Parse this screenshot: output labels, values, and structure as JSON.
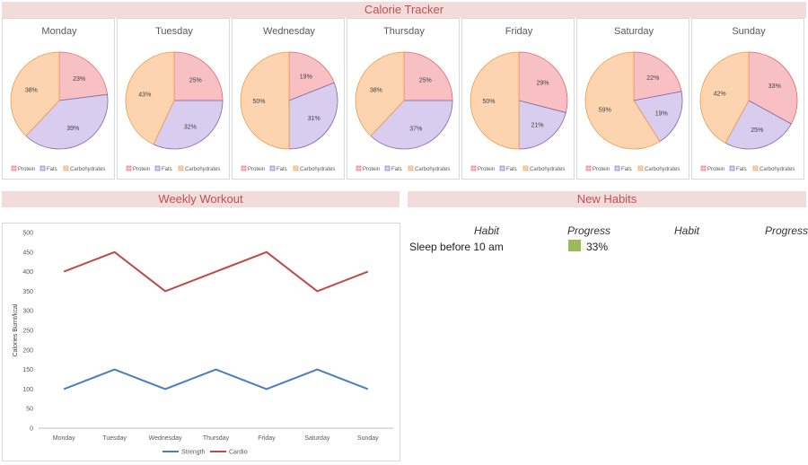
{
  "header": {
    "title": "Calorie Tracker"
  },
  "nutrition_legend": {
    "protein": "Protein",
    "fats": "Fats",
    "carbs": "Carbohydrates"
  },
  "colors": {
    "protein_fill": "#f9c0c3",
    "protein_stroke": "#e06666",
    "fats_fill": "#d9cdef",
    "fats_stroke": "#8064a2",
    "carbs_fill": "#fcd5b0",
    "carbs_stroke": "#f79646",
    "strength": "#4a7ebb",
    "cardio": "#be4b48",
    "habit_progress": "#9bbb59"
  },
  "chart_data": [
    {
      "type": "pie",
      "title": "Monday",
      "labels": [
        "Protein",
        "Fats",
        "Carbohydrates"
      ],
      "values": [
        23,
        39,
        38
      ]
    },
    {
      "type": "pie",
      "title": "Tuesday",
      "labels": [
        "Protein",
        "Fats",
        "Carbohydrates"
      ],
      "values": [
        25,
        32,
        43
      ]
    },
    {
      "type": "pie",
      "title": "Wednesday",
      "labels": [
        "Protein",
        "Fats",
        "Carbohydrates"
      ],
      "values": [
        19,
        31,
        50
      ]
    },
    {
      "type": "pie",
      "title": "Thursday",
      "labels": [
        "Protein",
        "Fats",
        "Carbohydrates"
      ],
      "values": [
        25,
        37,
        38
      ]
    },
    {
      "type": "pie",
      "title": "Friday",
      "labels": [
        "Protein",
        "Fats",
        "Carbohydrates"
      ],
      "values": [
        29,
        21,
        50
      ]
    },
    {
      "type": "pie",
      "title": "Saturday",
      "labels": [
        "Protein",
        "Fats",
        "Carbohydrates"
      ],
      "values": [
        22,
        19,
        59
      ]
    },
    {
      "type": "pie",
      "title": "Sunday",
      "labels": [
        "Protein",
        "Fats",
        "Carbohydrates"
      ],
      "values": [
        33,
        25,
        42
      ]
    },
    {
      "type": "line",
      "title": "Weekly Workout",
      "categories": [
        "Monday",
        "Tuesday",
        "Wednesday",
        "Thursday",
        "Friday",
        "Saturday",
        "Sunday"
      ],
      "series": [
        {
          "name": "Strength",
          "values": [
            100,
            150,
            100,
            150,
            100,
            150,
            100
          ]
        },
        {
          "name": "Cardio",
          "values": [
            400,
            450,
            350,
            400,
            450,
            350,
            400
          ]
        }
      ],
      "ylabel": "Calories Burnt/kcal",
      "ylim": [
        0,
        500
      ],
      "yticks": [
        0,
        50,
        100,
        150,
        200,
        250,
        300,
        350,
        400,
        450,
        500
      ],
      "legend": "bottom"
    }
  ],
  "habits": {
    "title": "New Habits",
    "headers": [
      "Habit",
      "Progress",
      "Habit",
      "Progress"
    ],
    "rows": [
      {
        "habit": "Sleep before 10 am",
        "progress": "33%",
        "progress_value": 0.33
      }
    ]
  }
}
